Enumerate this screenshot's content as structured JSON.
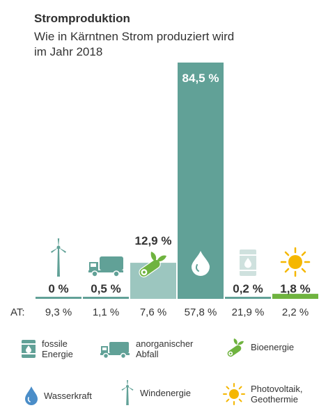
{
  "colors": {
    "teal_dark": "#61a197",
    "teal_light": "#9cc6bf",
    "green": "#6fb33f",
    "sun": "#f5b700",
    "water": "#4a8dc8",
    "text": "#333333"
  },
  "title": "Stromproduktion",
  "subtitle": [
    "Wie in Kärntnen Strom produziert wird",
    "im Jahr 2018"
  ],
  "at_label": "AT:",
  "chart_data": {
    "type": "bar",
    "title": "Stromproduktion",
    "subtitle": "Wie in Kärntnen Strom produziert wird im Jahr 2018",
    "categories": [
      "Windenergie",
      "anorganischer Abfall",
      "Bioenergie",
      "Wasserkraft",
      "fossile Energie",
      "Photovoltaik, Geothermie"
    ],
    "series": [
      {
        "values": [
          0,
          0.5,
          12.9,
          84.5,
          0.2,
          1.8
        ]
      },
      {
        "values": [
          9.3,
          1.1,
          7.6,
          57.8,
          21.9,
          2.2
        ]
      }
    ],
    "value_labels": [
      "0 %",
      "0,5 %",
      "12,9 %",
      "84,5 %",
      "0,2 %",
      "1,8 %"
    ],
    "at_labels": [
      "9,3 %",
      "1,1 %",
      "7,6 %",
      "57,8 %",
      "21,9 %",
      "2,2 %"
    ],
    "bar_colors": [
      "#61a197",
      "#61a197",
      "#9cc6bf",
      "#61a197",
      "#61a197",
      "#6fb33f"
    ],
    "icons": [
      "wind-turbine-icon",
      "truck-icon",
      "wood-leaf-icon",
      "water-drop-icon",
      "oil-barrel-icon",
      "sun-icon"
    ],
    "ylim": [
      0,
      84.5
    ]
  },
  "legend": [
    {
      "icon": "oil-barrel-icon",
      "label": "fossile\nEnergie"
    },
    {
      "icon": "truck-icon",
      "label": "anorganischer\nAbfall"
    },
    {
      "icon": "wood-leaf-icon",
      "label": "Bioenergie"
    },
    {
      "icon": "water-drop-icon",
      "label": "Wasserkraft"
    },
    {
      "icon": "wind-turbine-icon",
      "label": "Windenergie"
    },
    {
      "icon": "sun-icon",
      "label": "Photovoltaik,\nGeothermie"
    }
  ]
}
